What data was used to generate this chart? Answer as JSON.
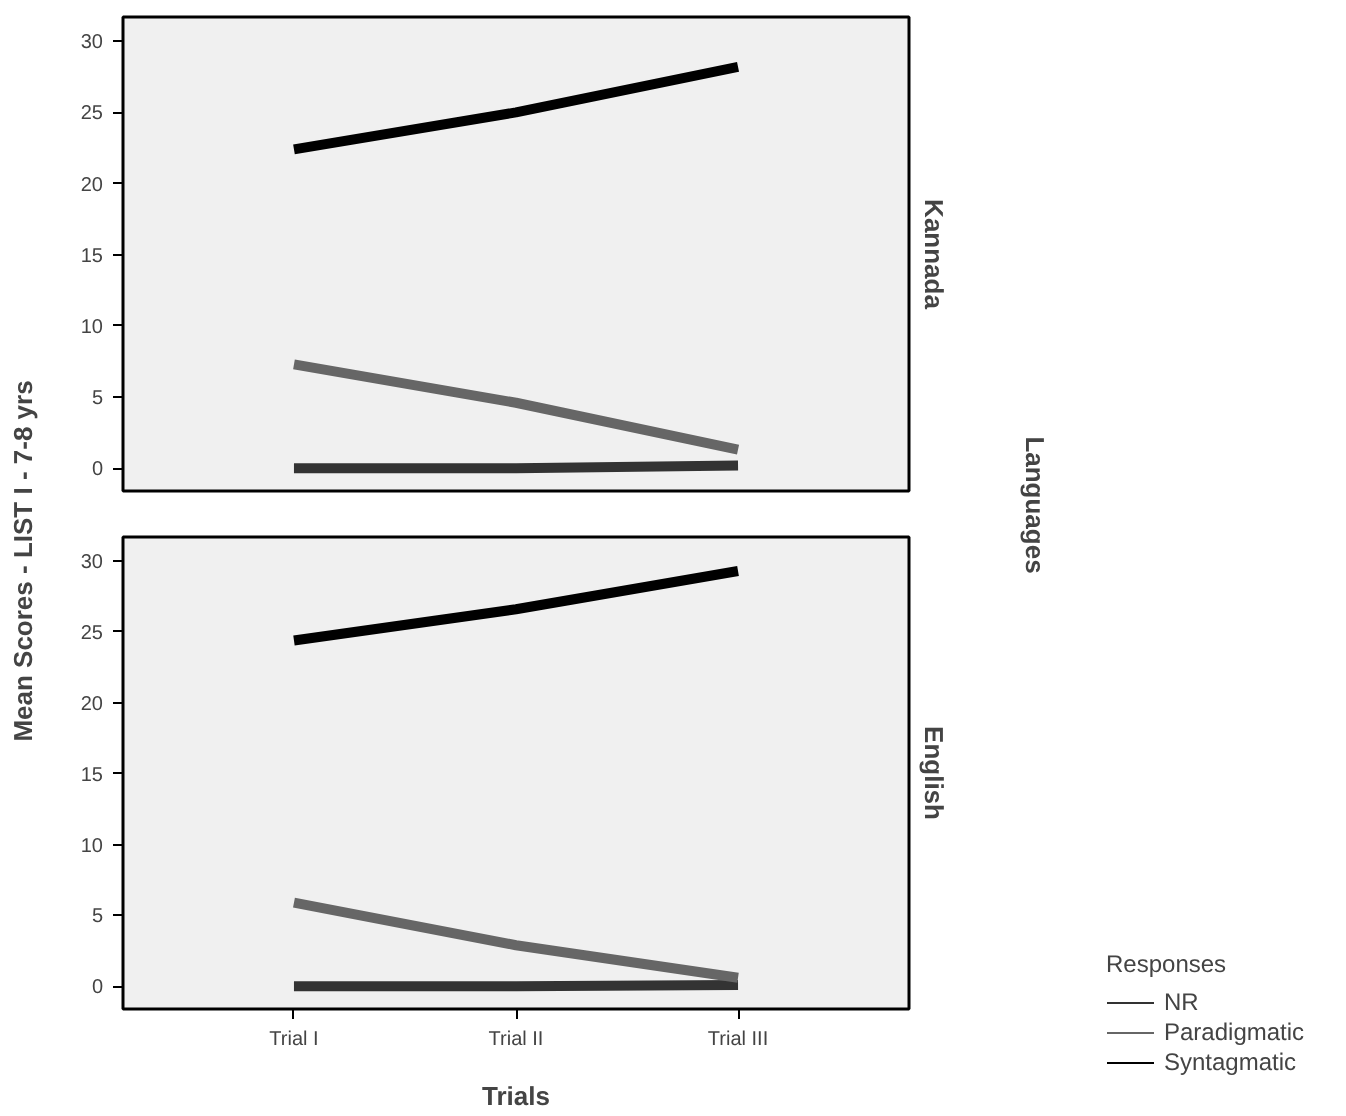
{
  "chart_data": [
    {
      "type": "line",
      "title": "Kannada",
      "ylabel": "Mean Scores - LIST I - 7-8 yrs",
      "annotations": [
        "Languages"
      ],
      "categories": [
        "Trial I",
        "Trial II",
        "Trial III"
      ],
      "ylim": [
        -1.6,
        31.7
      ],
      "yticks": [
        0,
        5,
        10,
        15,
        20,
        25,
        30
      ],
      "tick_labels": "y",
      "grid": false,
      "legend": false,
      "series": [
        {
          "color": "#333333",
          "values": [
            0,
            0,
            0.2
          ]
        },
        {
          "color": "#666666",
          "values": [
            7.3,
            4.6,
            1.3
          ]
        },
        {
          "color": "#000000",
          "values": [
            22.4,
            25.0,
            28.2
          ]
        }
      ]
    },
    {
      "type": "line",
      "title": "English",
      "xlabel": "Trials",
      "categories": [
        "Trial I",
        "Trial II",
        "Trial III"
      ],
      "ylim": [
        -1.6,
        31.7
      ],
      "yticks": [
        0,
        5,
        10,
        15,
        20,
        25,
        30
      ],
      "grid": false,
      "legend": "right",
      "legend_title": "Responses",
      "series": [
        {
          "name": "NR",
          "color": "#333333",
          "values": [
            0,
            0,
            0.1
          ]
        },
        {
          "name": "Paradigmatic",
          "color": "#666666",
          "values": [
            5.9,
            2.9,
            0.6
          ]
        },
        {
          "name": "Syntagmatic",
          "color": "#000000",
          "values": [
            24.4,
            26.6,
            29.3
          ]
        }
      ]
    }
  ]
}
